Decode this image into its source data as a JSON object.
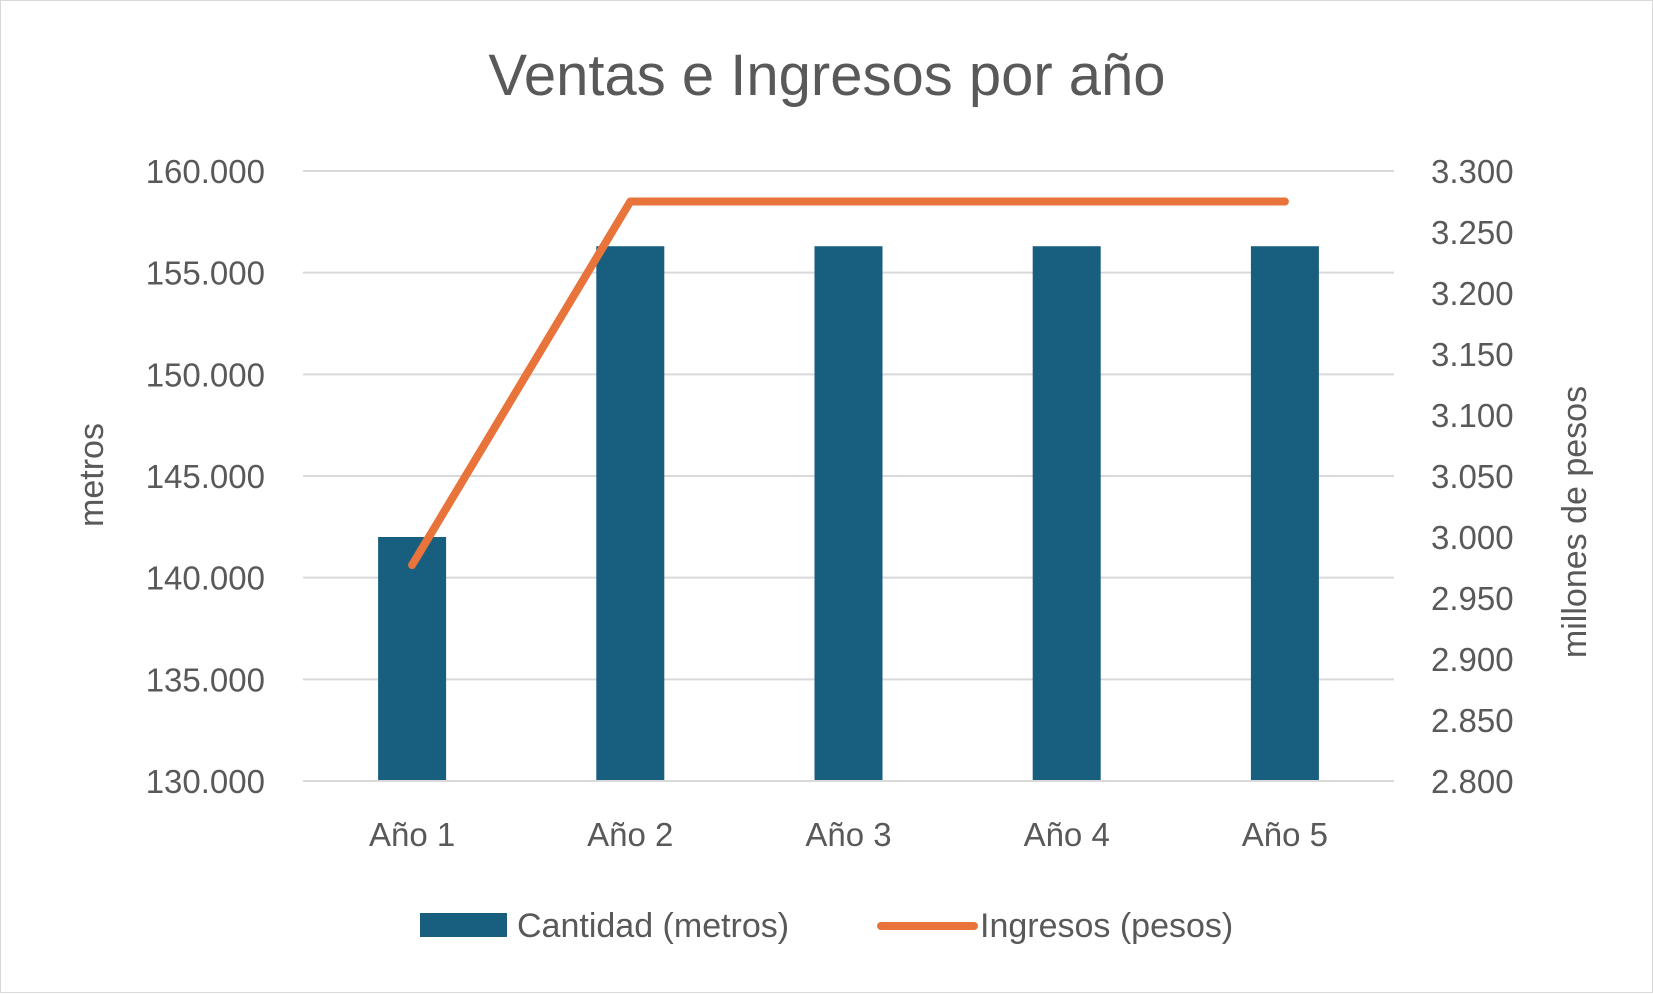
{
  "chart_data": {
    "type": "bar",
    "title": "Ventas e Ingresos por año",
    "categories": [
      "Año 1",
      "Año 2",
      "Año 3",
      "Año 4",
      "Año 5"
    ],
    "series": [
      {
        "name": "Cantidad (metros)",
        "type": "bar",
        "axis": "left",
        "color": "#175e7f",
        "values": [
          142000,
          156300,
          156300,
          156300,
          156300
        ]
      },
      {
        "name": "Ingresos (pesos)",
        "type": "line",
        "axis": "right",
        "color": "#e8743b",
        "values": [
          2977,
          3275,
          3275,
          3275,
          3275
        ]
      }
    ],
    "ylabel": "metros",
    "ylim": [
      130000,
      160000
    ],
    "yticks": [
      "130.000",
      "135.000",
      "140.000",
      "145.000",
      "150.000",
      "155.000",
      "160.000"
    ],
    "y2label": "millones de pesos",
    "y2lim": [
      2800,
      3300
    ],
    "y2ticks": [
      "2.800",
      "2.850",
      "2.900",
      "2.950",
      "3.000",
      "3.050",
      "3.100",
      "3.150",
      "3.200",
      "3.250",
      "3.300"
    ],
    "grid": true,
    "legend_position": "bottom"
  }
}
